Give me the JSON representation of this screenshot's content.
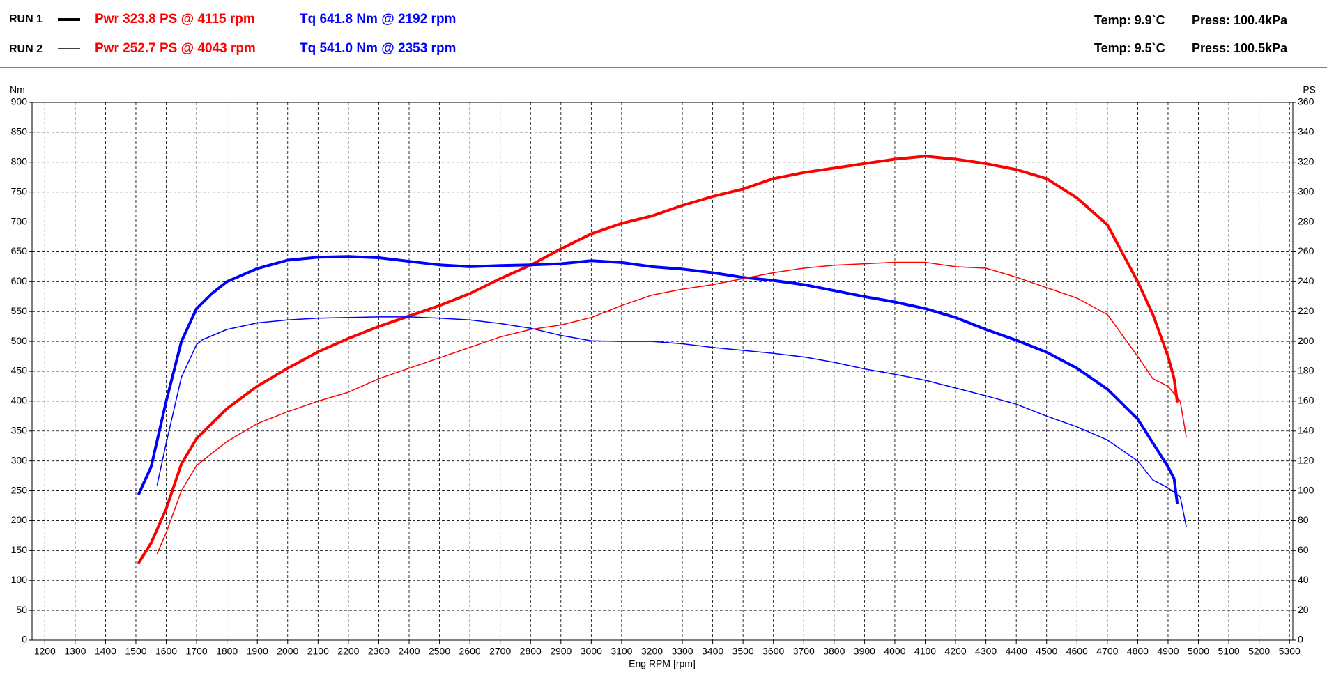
{
  "header": {
    "runs": [
      {
        "label": "RUN 1",
        "power": "Pwr  323.8 PS @ 4115 rpm",
        "torque": "Tq 641.8 Nm @ 2192 rpm",
        "temp": "Temp: 9.9`C",
        "press": "Press: 100.4kPa"
      },
      {
        "label": "RUN 2",
        "power": "Pwr  252.7 PS @ 4043 rpm",
        "torque": "Tq 541.0 Nm @ 2353 rpm",
        "temp": "Temp: 9.5`C",
        "press": "Press: 100.5kPa"
      }
    ]
  },
  "chart_data": {
    "type": "line",
    "xlabel": "Eng RPM [rpm]",
    "ylabel": "Nm",
    "y2label": "PS",
    "xlim": [
      1158,
      5311
    ],
    "xticks": [
      1200,
      1300,
      1400,
      1500,
      1600,
      1700,
      1800,
      1900,
      2000,
      2100,
      2200,
      2300,
      2400,
      2500,
      2600,
      2700,
      2800,
      2900,
      3000,
      3100,
      3200,
      3300,
      3400,
      3500,
      3600,
      3700,
      3800,
      3900,
      4000,
      4100,
      4200,
      4300,
      4400,
      4500,
      4600,
      4700,
      4800,
      4900,
      5000,
      5100,
      5200,
      5300
    ],
    "ylim": [
      0,
      900
    ],
    "yticks": [
      0,
      50,
      100,
      150,
      200,
      250,
      300,
      350,
      400,
      450,
      500,
      550,
      600,
      650,
      700,
      750,
      800,
      850,
      900
    ],
    "y2lim": [
      0,
      360
    ],
    "y2ticks": [
      0,
      20,
      40,
      60,
      80,
      100,
      120,
      140,
      160,
      180,
      200,
      220,
      240,
      260,
      280,
      300,
      320,
      340,
      360
    ],
    "grid": true,
    "series": [
      {
        "color": "#ff0000",
        "line_width": 4,
        "axis": "y2",
        "x": [
          1510,
          1550,
          1600,
          1650,
          1700,
          1800,
          1900,
          2000,
          2100,
          2200,
          2300,
          2400,
          2500,
          2600,
          2700,
          2800,
          2900,
          3000,
          3100,
          3200,
          3300,
          3400,
          3500,
          3600,
          3700,
          3800,
          3900,
          4000,
          4100,
          4200,
          4300,
          4400,
          4500,
          4600,
          4700,
          4800,
          4850,
          4900,
          4920,
          4930
        ],
        "values": [
          52,
          65,
          88,
          118,
          135,
          155,
          170,
          182,
          193,
          202,
          210,
          217,
          224,
          232,
          242,
          251,
          262,
          272,
          279,
          284,
          291,
          297,
          302,
          309,
          313,
          316,
          319,
          322,
          324,
          322,
          319,
          315,
          309,
          296,
          278,
          240,
          218,
          190,
          175,
          160
        ]
      },
      {
        "color": "#0000ff",
        "line_width": 4,
        "axis": "y",
        "x": [
          1510,
          1550,
          1600,
          1650,
          1700,
          1750,
          1800,
          1900,
          2000,
          2100,
          2200,
          2300,
          2400,
          2500,
          2600,
          2700,
          2800,
          2900,
          3000,
          3100,
          3200,
          3300,
          3400,
          3500,
          3600,
          3700,
          3800,
          3900,
          4000,
          4100,
          4200,
          4300,
          4400,
          4500,
          4600,
          4700,
          4800,
          4900,
          4920,
          4930
        ],
        "values": [
          245,
          290,
          400,
          500,
          555,
          580,
          600,
          622,
          636,
          641,
          642,
          640,
          634,
          628,
          625,
          627,
          628,
          630,
          635,
          632,
          625,
          621,
          615,
          607,
          602,
          595,
          585,
          575,
          566,
          555,
          540,
          520,
          502,
          482,
          455,
          420,
          370,
          290,
          270,
          230
        ]
      },
      {
        "color": "#ff0000",
        "line_width": 1.5,
        "axis": "y2",
        "x": [
          1570,
          1600,
          1650,
          1700,
          1800,
          1900,
          2000,
          2100,
          2200,
          2300,
          2400,
          2500,
          2600,
          2700,
          2800,
          2900,
          3000,
          3100,
          3200,
          3300,
          3400,
          3500,
          3600,
          3700,
          3800,
          3900,
          4000,
          4100,
          4200,
          4300,
          4400,
          4500,
          4600,
          4700,
          4800,
          4850,
          4900,
          4940,
          4960
        ],
        "values": [
          58,
          72,
          100,
          117,
          133,
          145,
          153,
          160,
          166,
          175,
          182,
          189,
          196,
          203,
          208,
          211,
          216,
          224,
          231,
          235,
          238,
          242,
          246,
          249,
          251,
          252,
          253,
          253,
          250,
          249,
          243,
          236,
          229,
          218,
          190,
          175,
          170,
          160,
          136
        ]
      },
      {
        "color": "#0000ff",
        "line_width": 1.5,
        "axis": "y",
        "x": [
          1570,
          1600,
          1650,
          1700,
          1720,
          1800,
          1900,
          2000,
          2100,
          2200,
          2300,
          2400,
          2500,
          2600,
          2700,
          2800,
          2900,
          3000,
          3100,
          3200,
          3300,
          3400,
          3500,
          3600,
          3700,
          3800,
          3900,
          4000,
          4100,
          4200,
          4300,
          4400,
          4500,
          4600,
          4700,
          4800,
          4850,
          4900,
          4940,
          4960
        ],
        "values": [
          260,
          330,
          440,
          495,
          503,
          520,
          531,
          536,
          539,
          540,
          541,
          541,
          539,
          536,
          530,
          522,
          510,
          501,
          500,
          500,
          496,
          490,
          485,
          480,
          474,
          465,
          454,
          445,
          435,
          422,
          409,
          395,
          375,
          357,
          335,
          300,
          268,
          255,
          240,
          190
        ]
      }
    ]
  }
}
